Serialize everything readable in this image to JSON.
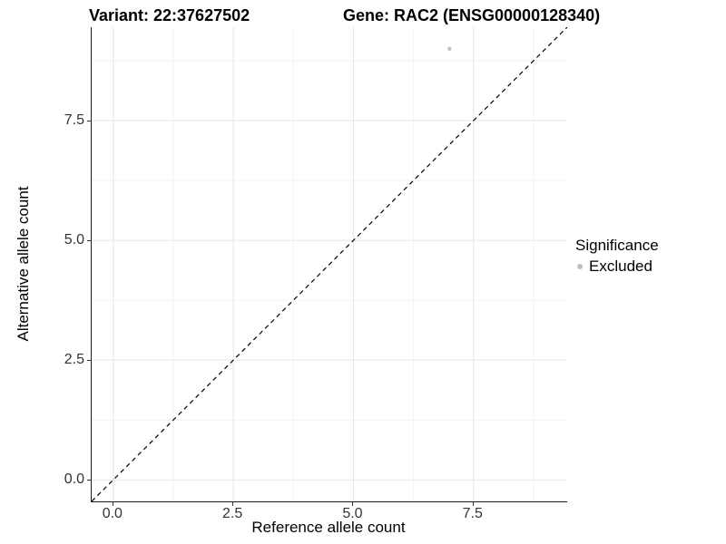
{
  "chart_data": {
    "type": "scatter",
    "titles": {
      "left": "Variant: 22:37627502",
      "right": "Gene: RAC2 (ENSG00000128340)"
    },
    "xlabel": "Reference allele count",
    "ylabel": "Alternative allele count",
    "xlim": [
      -0.45,
      9.45
    ],
    "ylim": [
      -0.45,
      9.45
    ],
    "xticks": [
      0,
      2.5,
      5,
      7.5
    ],
    "xtick_labels": [
      "0.0",
      "2.5",
      "5.0",
      "7.5"
    ],
    "yticks": [
      0,
      2.5,
      5,
      7.5
    ],
    "ytick_labels": [
      "0.0",
      "2.5",
      "5.0",
      "7.5"
    ],
    "minor_ticks": [
      1.25,
      3.75,
      6.25,
      8.75
    ],
    "grid": "major+minor",
    "points": [
      {
        "x": 7,
        "y": 9,
        "series": "Excluded"
      }
    ],
    "reference_line": {
      "type": "identity",
      "intercept": 0,
      "slope": 1,
      "style": "dashed"
    },
    "legend": {
      "title": "Significance",
      "position": "right",
      "items": [
        {
          "label": "Excluded",
          "color": "#bebebe"
        }
      ]
    }
  },
  "colors": {
    "background": "#ffffff",
    "grid_major": "#e5e5e5",
    "grid_minor": "#f2f2f2",
    "axis_line": "#1a1a1a",
    "tick_text": "#333333",
    "title_text": "#000000",
    "point": "#bebebe",
    "reference_line": "#000000"
  }
}
